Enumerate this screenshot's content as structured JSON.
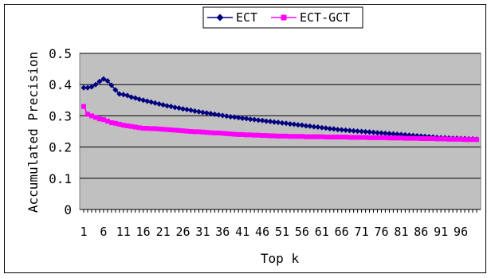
{
  "chart_data": {
    "type": "line",
    "title": "",
    "xlabel": "Top k",
    "ylabel": "Accumulated Precision",
    "x_tick_labels": [
      "1",
      "6",
      "11",
      "16",
      "21",
      "26",
      "31",
      "36",
      "41",
      "46",
      "51",
      "56",
      "61",
      "66",
      "71",
      "76",
      "81",
      "86",
      "91",
      "96"
    ],
    "x_range": [
      1,
      100
    ],
    "ylim": [
      0,
      0.5
    ],
    "y_ticks": [
      0,
      0.1,
      0.2,
      0.3,
      0.4,
      0.5
    ],
    "y_tick_labels": [
      "0",
      "0.1",
      "0.2",
      "0.3",
      "0.4",
      "0.5"
    ],
    "grid": "horizontal",
    "plot_background": "#C0C0C0",
    "legend_position": "top",
    "series": [
      {
        "name": "ECT",
        "color": "#000080",
        "marker": "diamond",
        "values": [
          0.39,
          0.39,
          0.393,
          0.4,
          0.41,
          0.418,
          0.412,
          0.398,
          0.383,
          0.37,
          0.368,
          0.365,
          0.36,
          0.357,
          0.353,
          0.35,
          0.347,
          0.344,
          0.341,
          0.338,
          0.335,
          0.332,
          0.33,
          0.327,
          0.325,
          0.322,
          0.32,
          0.318,
          0.315,
          0.313,
          0.311,
          0.309,
          0.307,
          0.305,
          0.303,
          0.301,
          0.299,
          0.297,
          0.296,
          0.294,
          0.292,
          0.291,
          0.289,
          0.288,
          0.286,
          0.285,
          0.283,
          0.282,
          0.28,
          0.279,
          0.277,
          0.276,
          0.274,
          0.273,
          0.271,
          0.27,
          0.268,
          0.267,
          0.265,
          0.264,
          0.262,
          0.261,
          0.259,
          0.258,
          0.256,
          0.255,
          0.254,
          0.253,
          0.252,
          0.251,
          0.25,
          0.249,
          0.248,
          0.247,
          0.246,
          0.245,
          0.244,
          0.243,
          0.242,
          0.241,
          0.24,
          0.239,
          0.238,
          0.237,
          0.236,
          0.235,
          0.234,
          0.233,
          0.232,
          0.231,
          0.23,
          0.23,
          0.229,
          0.228,
          0.228,
          0.227,
          0.227,
          0.226,
          0.226,
          0.225
        ]
      },
      {
        "name": "ECT-GCT",
        "color": "#FF00FF",
        "marker": "square",
        "values": [
          0.33,
          0.305,
          0.3,
          0.295,
          0.29,
          0.288,
          0.283,
          0.278,
          0.276,
          0.273,
          0.27,
          0.268,
          0.266,
          0.264,
          0.262,
          0.26,
          0.26,
          0.259,
          0.259,
          0.258,
          0.257,
          0.256,
          0.255,
          0.254,
          0.253,
          0.252,
          0.251,
          0.25,
          0.249,
          0.249,
          0.248,
          0.247,
          0.246,
          0.245,
          0.245,
          0.244,
          0.243,
          0.242,
          0.241,
          0.24,
          0.24,
          0.239,
          0.239,
          0.238,
          0.238,
          0.237,
          0.237,
          0.236,
          0.236,
          0.235,
          0.235,
          0.235,
          0.234,
          0.234,
          0.234,
          0.234,
          0.233,
          0.233,
          0.233,
          0.233,
          0.233,
          0.232,
          0.232,
          0.232,
          0.232,
          0.232,
          0.232,
          0.231,
          0.231,
          0.231,
          0.231,
          0.231,
          0.23,
          0.23,
          0.23,
          0.23,
          0.23,
          0.229,
          0.229,
          0.229,
          0.229,
          0.228,
          0.228,
          0.228,
          0.228,
          0.227,
          0.227,
          0.227,
          0.227,
          0.226,
          0.226,
          0.226,
          0.225,
          0.225,
          0.225,
          0.225,
          0.224,
          0.224,
          0.224,
          0.224
        ]
      }
    ]
  }
}
